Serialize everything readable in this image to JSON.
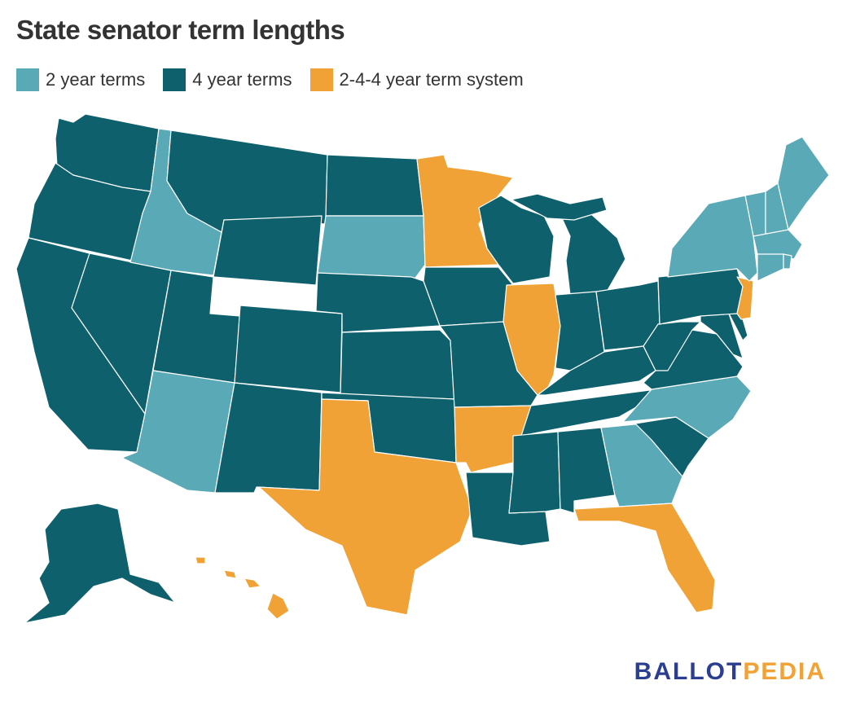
{
  "title": "State senator term lengths",
  "legend": [
    {
      "key": "two",
      "label": "2 year terms",
      "color": "#5aa9b6"
    },
    {
      "key": "four",
      "label": "4 year terms",
      "color": "#0e606d"
    },
    {
      "key": "mixed",
      "label": "2-4-4 year term system",
      "color": "#f0a236"
    }
  ],
  "map": {
    "states": [
      {
        "name": "Washington",
        "category": "four"
      },
      {
        "name": "Oregon",
        "category": "four"
      },
      {
        "name": "California",
        "category": "four"
      },
      {
        "name": "Nevada",
        "category": "four"
      },
      {
        "name": "Idaho",
        "category": "two"
      },
      {
        "name": "Montana",
        "category": "four"
      },
      {
        "name": "Wyoming",
        "category": "four"
      },
      {
        "name": "Utah",
        "category": "four"
      },
      {
        "name": "Arizona",
        "category": "two"
      },
      {
        "name": "Colorado",
        "category": "four"
      },
      {
        "name": "New Mexico",
        "category": "four"
      },
      {
        "name": "North Dakota",
        "category": "four"
      },
      {
        "name": "South Dakota",
        "category": "two"
      },
      {
        "name": "Nebraska",
        "category": "four"
      },
      {
        "name": "Kansas",
        "category": "four"
      },
      {
        "name": "Oklahoma",
        "category": "four"
      },
      {
        "name": "Texas",
        "category": "mixed"
      },
      {
        "name": "Minnesota",
        "category": "mixed"
      },
      {
        "name": "Iowa",
        "category": "four"
      },
      {
        "name": "Missouri",
        "category": "four"
      },
      {
        "name": "Arkansas",
        "category": "mixed"
      },
      {
        "name": "Louisiana",
        "category": "four"
      },
      {
        "name": "Wisconsin",
        "category": "four"
      },
      {
        "name": "Illinois",
        "category": "mixed"
      },
      {
        "name": "Michigan",
        "category": "four"
      },
      {
        "name": "Indiana",
        "category": "four"
      },
      {
        "name": "Ohio",
        "category": "four"
      },
      {
        "name": "Kentucky",
        "category": "four"
      },
      {
        "name": "Tennessee",
        "category": "four"
      },
      {
        "name": "Mississippi",
        "category": "four"
      },
      {
        "name": "Alabama",
        "category": "four"
      },
      {
        "name": "Georgia",
        "category": "two"
      },
      {
        "name": "Florida",
        "category": "mixed"
      },
      {
        "name": "South Carolina",
        "category": "four"
      },
      {
        "name": "North Carolina",
        "category": "two"
      },
      {
        "name": "Virginia",
        "category": "four"
      },
      {
        "name": "West Virginia",
        "category": "four"
      },
      {
        "name": "Maryland",
        "category": "four"
      },
      {
        "name": "Delaware",
        "category": "four"
      },
      {
        "name": "Pennsylvania",
        "category": "four"
      },
      {
        "name": "New Jersey",
        "category": "mixed"
      },
      {
        "name": "New York",
        "category": "two"
      },
      {
        "name": "Vermont",
        "category": "two"
      },
      {
        "name": "New Hampshire",
        "category": "two"
      },
      {
        "name": "Maine",
        "category": "two"
      },
      {
        "name": "Massachusetts",
        "category": "two"
      },
      {
        "name": "Connecticut",
        "category": "two"
      },
      {
        "name": "Rhode Island",
        "category": "two"
      },
      {
        "name": "Alaska",
        "category": "four"
      },
      {
        "name": "Hawaii",
        "category": "mixed"
      }
    ]
  },
  "brand": {
    "part1": "BALLOT",
    "part2": "PEDIA"
  }
}
